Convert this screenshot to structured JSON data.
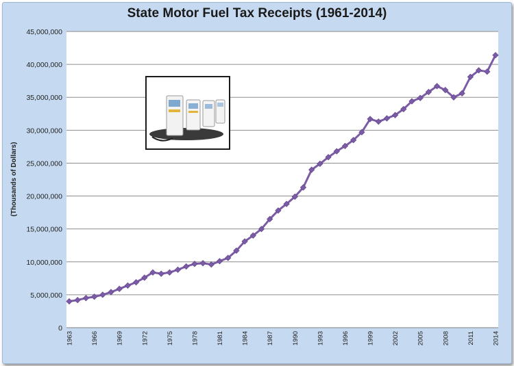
{
  "chart_data": {
    "type": "line",
    "title": "State Motor Fuel Tax Receipts (1961-2014)",
    "xlabel": "",
    "ylabel": "(Thousands of Dollars)",
    "ylim": [
      0,
      45000000
    ],
    "y_ticks": [
      "45,000,000",
      "40,000,000",
      "35,000,000",
      "30,000,000",
      "25,000,000",
      "20,000,000",
      "15,000,000",
      "10,000,000",
      "5,000,000",
      "0"
    ],
    "x_ticks": [
      "1963",
      "1966",
      "1969",
      "1972",
      "1975",
      "1978",
      "1981",
      "1984",
      "1987",
      "1990",
      "1993",
      "1996",
      "1999",
      "2002",
      "2005",
      "2008",
      "2011",
      "2014"
    ],
    "grid": "horizontal",
    "series_color": "#7b5aa6",
    "x": [
      1963,
      1964,
      1965,
      1966,
      1967,
      1968,
      1969,
      1970,
      1971,
      1972,
      1973,
      1974,
      1975,
      1976,
      1977,
      1978,
      1979,
      1980,
      1981,
      1982,
      1983,
      1984,
      1985,
      1986,
      1987,
      1988,
      1989,
      1990,
      1991,
      1992,
      1993,
      1994,
      1995,
      1996,
      1997,
      1998,
      1999,
      2000,
      2001,
      2002,
      2003,
      2004,
      2005,
      2006,
      2007,
      2008,
      2009,
      2010,
      2011,
      2012,
      2013,
      2014
    ],
    "values": [
      4000000,
      4200000,
      4500000,
      4700000,
      5000000,
      5400000,
      5900000,
      6400000,
      6900000,
      7600000,
      8400000,
      8200000,
      8400000,
      8800000,
      9300000,
      9700000,
      9800000,
      9600000,
      10100000,
      10600000,
      11700000,
      13100000,
      14000000,
      15000000,
      16500000,
      17800000,
      18800000,
      19900000,
      21300000,
      24000000,
      24900000,
      25900000,
      26800000,
      27600000,
      28500000,
      29700000,
      31700000,
      31300000,
      31800000,
      32300000,
      33200000,
      34400000,
      34900000,
      35800000,
      36700000,
      36100000,
      35000000,
      35600000,
      38100000,
      39100000,
      38900000,
      41400000
    ]
  },
  "picture": {
    "name": "gas-pump-photo"
  }
}
